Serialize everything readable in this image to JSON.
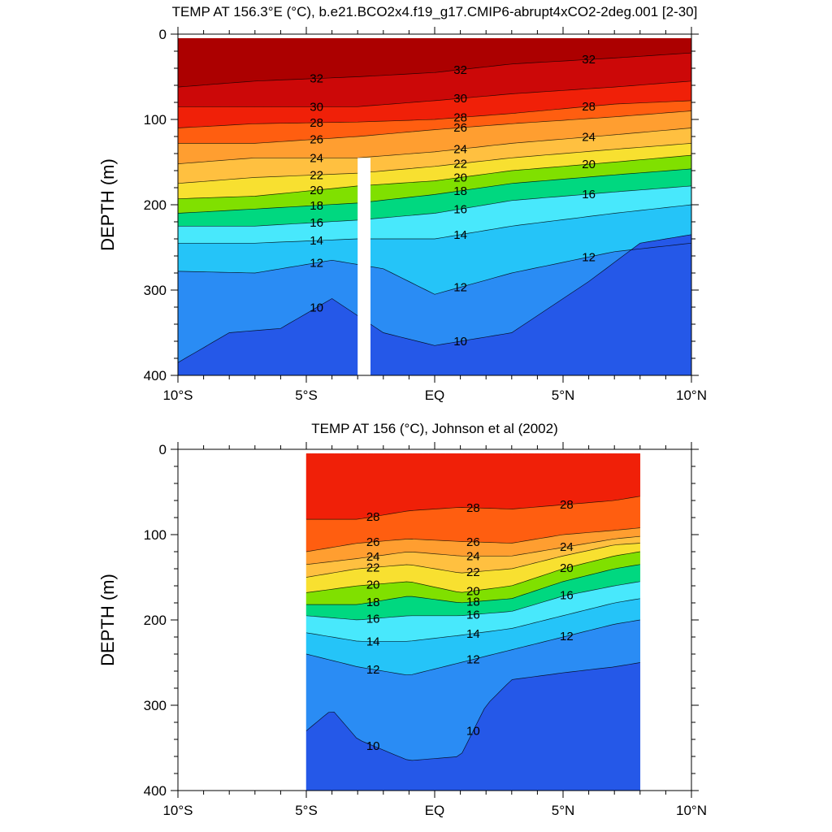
{
  "chart_data": [
    {
      "type": "contour",
      "title": "TEMP AT 156.3°E (°C), b.e21.BCO2x4.f19_g17.CMIP6-abrupt4xCO2-2deg.001 [2-30]",
      "ylabel": "DEPTH (m)",
      "xlabel": "",
      "x_ticks": [
        "10°S",
        "5°S",
        "EQ",
        "5°N",
        "10°N"
      ],
      "x_tick_values": [
        -10,
        -5,
        0,
        5,
        10
      ],
      "y_ticks": [
        "0",
        "100",
        "200",
        "300",
        "400"
      ],
      "y_tick_values": [
        0,
        100,
        200,
        300,
        400
      ],
      "xlim": [
        -10,
        10
      ],
      "ylim": [
        400,
        0
      ],
      "y_inverted": true,
      "data_xlim": [
        -10,
        10
      ],
      "data_ylim": [
        5,
        400
      ],
      "missing_band": {
        "x": [
          -3.0,
          -2.5
        ],
        "depth": [
          145,
          400
        ]
      },
      "isotherms": [
        {
          "level": 32,
          "points": [
            [
              -10,
              62
            ],
            [
              -7,
              55
            ],
            [
              -3,
              50
            ],
            [
              0,
              45
            ],
            [
              3,
              35
            ],
            [
              7,
              28
            ],
            [
              10,
              22
            ]
          ]
        },
        {
          "level": 30,
          "points": [
            [
              -10,
              85
            ],
            [
              -7,
              85
            ],
            [
              -3,
              85
            ],
            [
              0,
              78
            ],
            [
              3,
              70
            ],
            [
              7,
              62
            ],
            [
              10,
              55
            ]
          ]
        },
        {
          "level": 28,
          "points": [
            [
              -10,
              110
            ],
            [
              -7,
              105
            ],
            [
              -3,
              103
            ],
            [
              0,
              100
            ],
            [
              3,
              93
            ],
            [
              7,
              82
            ],
            [
              10,
              78
            ]
          ]
        },
        {
          "level": 26,
          "points": [
            [
              -10,
              128
            ],
            [
              -7,
              128
            ],
            [
              -3,
              120
            ],
            [
              0,
              112
            ],
            [
              3,
              105
            ],
            [
              7,
              97
            ],
            [
              10,
              90
            ]
          ]
        },
        {
          "level": 24,
          "points": [
            [
              -10,
              152
            ],
            [
              -7,
              145
            ],
            [
              -3,
              145
            ],
            [
              0,
              138
            ],
            [
              3,
              128
            ],
            [
              7,
              118
            ],
            [
              10,
              110
            ]
          ]
        },
        {
          "level": 22,
          "points": [
            [
              -10,
              175
            ],
            [
              -7,
              168
            ],
            [
              -3,
              163
            ],
            [
              0,
              155
            ],
            [
              3,
              145
            ],
            [
              7,
              135
            ],
            [
              10,
              128
            ]
          ]
        },
        {
          "level": 20,
          "points": [
            [
              -10,
              193
            ],
            [
              -7,
              190
            ],
            [
              -3,
              178
            ],
            [
              0,
              172
            ],
            [
              3,
              160
            ],
            [
              7,
              150
            ],
            [
              10,
              142
            ]
          ]
        },
        {
          "level": 18,
          "points": [
            [
              -10,
              210
            ],
            [
              -7,
              205
            ],
            [
              -3,
              198
            ],
            [
              0,
              188
            ],
            [
              3,
              175
            ],
            [
              7,
              165
            ],
            [
              10,
              158
            ]
          ]
        },
        {
          "level": 16,
          "points": [
            [
              -10,
              225
            ],
            [
              -7,
              225
            ],
            [
              -3,
              218
            ],
            [
              0,
              210
            ],
            [
              3,
              195
            ],
            [
              7,
              185
            ],
            [
              10,
              178
            ]
          ]
        },
        {
          "level": 14,
          "points": [
            [
              -10,
              245
            ],
            [
              -7,
              245
            ],
            [
              -3,
              240
            ],
            [
              0,
              240
            ],
            [
              3,
              225
            ],
            [
              7,
              210
            ],
            [
              10,
              200
            ]
          ]
        },
        {
          "level": 12,
          "points": [
            [
              -10,
              278
            ],
            [
              -7,
              280
            ],
            [
              -4,
              265
            ],
            [
              -2,
              275
            ],
            [
              0,
              305
            ],
            [
              3,
              280
            ],
            [
              7,
              255
            ],
            [
              10,
              245
            ]
          ]
        },
        {
          "level": 10,
          "points": [
            [
              -10,
              385
            ],
            [
              -8,
              350
            ],
            [
              -6,
              345
            ],
            [
              -4,
              310
            ],
            [
              -2,
              350
            ],
            [
              0,
              365
            ],
            [
              3,
              350
            ],
            [
              6,
              290
            ],
            [
              8,
              245
            ],
            [
              10,
              235
            ]
          ]
        }
      ],
      "contour_labels": [
        "32",
        "30",
        "28",
        "26",
        "24",
        "22",
        "20",
        "18",
        "16",
        "14",
        "12",
        "10"
      ]
    },
    {
      "type": "contour",
      "title": "TEMP AT 156 (°C), Johnson et al (2002)",
      "ylabel": "DEPTH (m)",
      "xlabel": "",
      "x_ticks": [
        "10°S",
        "5°S",
        "EQ",
        "5°N",
        "10°N"
      ],
      "x_tick_values": [
        -10,
        -5,
        0,
        5,
        10
      ],
      "y_ticks": [
        "0",
        "100",
        "200",
        "300",
        "400"
      ],
      "y_tick_values": [
        0,
        100,
        200,
        300,
        400
      ],
      "xlim": [
        -10,
        10
      ],
      "ylim": [
        400,
        0
      ],
      "y_inverted": true,
      "data_xlim": [
        -5,
        8
      ],
      "data_ylim": [
        5,
        400
      ],
      "isotherms": [
        {
          "level": 28,
          "points": [
            [
              -5,
              82
            ],
            [
              -3,
              82
            ],
            [
              -1,
              72
            ],
            [
              1,
              68
            ],
            [
              3,
              70
            ],
            [
              5,
              65
            ],
            [
              7,
              60
            ],
            [
              8,
              55
            ]
          ]
        },
        {
          "level": 26,
          "points": [
            [
              -5,
              120
            ],
            [
              -3,
              110
            ],
            [
              -1,
              105
            ],
            [
              1,
              108
            ],
            [
              3,
              110
            ],
            [
              5,
              100
            ],
            [
              7,
              95
            ],
            [
              8,
              92
            ]
          ]
        },
        {
          "level": 24,
          "points": [
            [
              -5,
              135
            ],
            [
              -3,
              128
            ],
            [
              -1,
              120
            ],
            [
              1,
              125
            ],
            [
              3,
              125
            ],
            [
              5,
              115
            ],
            [
              7,
              105
            ],
            [
              8,
              102
            ]
          ]
        },
        {
          "level": 22,
          "points": [
            [
              -5,
              150
            ],
            [
              -3,
              140
            ],
            [
              -1,
              135
            ],
            [
              1,
              145
            ],
            [
              3,
              140
            ],
            [
              5,
              125
            ],
            [
              7,
              112
            ],
            [
              8,
              110
            ]
          ]
        },
        {
          "level": 20,
          "points": [
            [
              -5,
              168
            ],
            [
              -3,
              160
            ],
            [
              -1,
              155
            ],
            [
              1,
              168
            ],
            [
              3,
              160
            ],
            [
              5,
              140
            ],
            [
              7,
              125
            ],
            [
              8,
              120
            ]
          ]
        },
        {
          "level": 18,
          "points": [
            [
              -5,
              182
            ],
            [
              -3,
              182
            ],
            [
              -1,
              172
            ],
            [
              1,
              180
            ],
            [
              3,
              175
            ],
            [
              5,
              155
            ],
            [
              7,
              140
            ],
            [
              8,
              135
            ]
          ]
        },
        {
          "level": 16,
          "points": [
            [
              -5,
              195
            ],
            [
              -3,
              200
            ],
            [
              -1,
              195
            ],
            [
              1,
              195
            ],
            [
              3,
              190
            ],
            [
              5,
              172
            ],
            [
              7,
              160
            ],
            [
              8,
              155
            ]
          ]
        },
        {
          "level": 14,
          "points": [
            [
              -5,
              215
            ],
            [
              -3,
              225
            ],
            [
              -1,
              225
            ],
            [
              1,
              218
            ],
            [
              3,
              210
            ],
            [
              5,
              195
            ],
            [
              7,
              180
            ],
            [
              8,
              175
            ]
          ]
        },
        {
          "level": 12,
          "points": [
            [
              -5,
              240
            ],
            [
              -3,
              255
            ],
            [
              -1,
              265
            ],
            [
              1,
              250
            ],
            [
              3,
              235
            ],
            [
              5,
              220
            ],
            [
              7,
              205
            ],
            [
              8,
              200
            ]
          ]
        },
        {
          "level": 10,
          "points": [
            [
              -5,
              330
            ],
            [
              -4,
              305
            ],
            [
              -3,
              340
            ],
            [
              -1,
              365
            ],
            [
              1,
              360
            ],
            [
              2,
              300
            ],
            [
              3,
              270
            ],
            [
              5,
              262
            ],
            [
              7,
              255
            ],
            [
              8,
              250
            ]
          ]
        }
      ],
      "contour_labels": [
        "28",
        "26",
        "24",
        "22",
        "20",
        "18",
        "16",
        "14",
        "12",
        "10"
      ]
    }
  ]
}
